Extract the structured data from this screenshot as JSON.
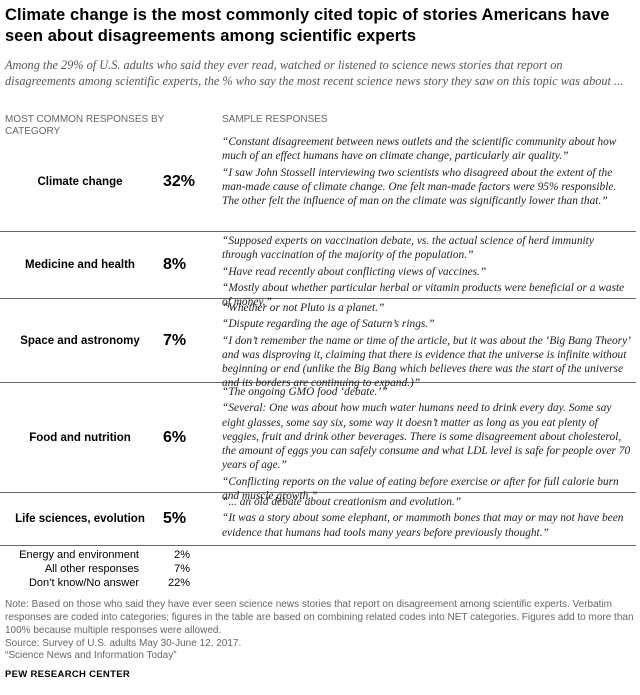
{
  "header": {
    "title": "Climate change is the most commonly cited topic of stories Americans have seen about disagreements among scientific experts",
    "subtitle": "Among the 29% of U.S. adults who said they ever read, watched or listened to science news stories that report on disagreements among scientific experts, the % who say the most recent science news story they saw on this topic was about ..."
  },
  "columns": {
    "left": "MOST COMMON RESPONSES BY CATEGORY",
    "right": "SAMPLE RESPONSES"
  },
  "chart_data": {
    "type": "table",
    "rows": [
      {
        "category": "Climate change",
        "value": "32%",
        "quotes": [
          "“Constant disagreement between news outlets and the scientific community about how much of an effect humans have on climate change, particularly air quality.”",
          "“I saw John Stossell interviewing two scientists who disagreed about the extent of the man-made cause of climate change. One felt man-made factors were 95% responsible. The other felt the influence of man on the climate was significantly lower than that.”"
        ]
      },
      {
        "category": "Medicine and health",
        "value": "8%",
        "quotes": [
          "“Supposed experts on vaccination debate, vs. the actual science of herd immunity through vaccination of the majority of the population.”",
          "“Have read recently about conflicting views of vaccines.”",
          "“Mostly about whether particular herbal or vitamin products were beneficial or a waste of money.”"
        ]
      },
      {
        "category": "Space and astronomy",
        "value": "7%",
        "quotes": [
          "“Whether or not Pluto is a planet.”",
          "“Dispute regarding the age of Saturn’s rings.”",
          "“I don’t remember the name or time of the article, but it was about the ‘Big Bang Theory’ and was disproving it, claiming that there is evidence that the universe is infinite without beginning or end (unlike the Big Bang which believes there was the start of the universe and its borders are continuing to expand.)”"
        ]
      },
      {
        "category": "Food and nutrition",
        "value": "6%",
        "quotes": [
          "“The ongoing GMO food ‘debate.’”",
          "“Several: One was about how much water humans need to drink every day. Some say eight glasses, some say six, some way it doesn’t matter as long as you eat plenty of veggies, fruit and drink other beverages. There is some disagreement about cholesterol, the amount of eggs you can safely consume and what LDL level is safe for people over 70 years of age.”",
          "“Conflicting reports on the value of eating before exercise or after for full calorie burn and muscle growth.”"
        ]
      },
      {
        "category": "Life sciences, evolution",
        "value": "5%",
        "quotes": [
          "“... an old debate about creationism and evolution.”",
          "“It was a story about some elephant, or mammoth bones that may or may not have been evidence that humans had tools many years before previously thought.”"
        ]
      }
    ],
    "other_rows": [
      {
        "category": "Energy and environment",
        "value": "2%"
      },
      {
        "category": "All other responses",
        "value": "7%"
      },
      {
        "category": "Don’t know/No answer",
        "value": "22%"
      }
    ]
  },
  "footer": {
    "note": "Note: Based on those who said they have ever seen science news stories that report on disagreement among scientific experts. Verbatim responses are coded into categories; figures in the table are based on combining related codes into NET categories. Figures add to more than 100% because multiple responses were allowed.",
    "source": "Source: Survey of U.S. adults May 30-June 12, 2017.",
    "report": "“Science News and Information Today”",
    "brand": "PEW RESEARCH CENTER"
  }
}
